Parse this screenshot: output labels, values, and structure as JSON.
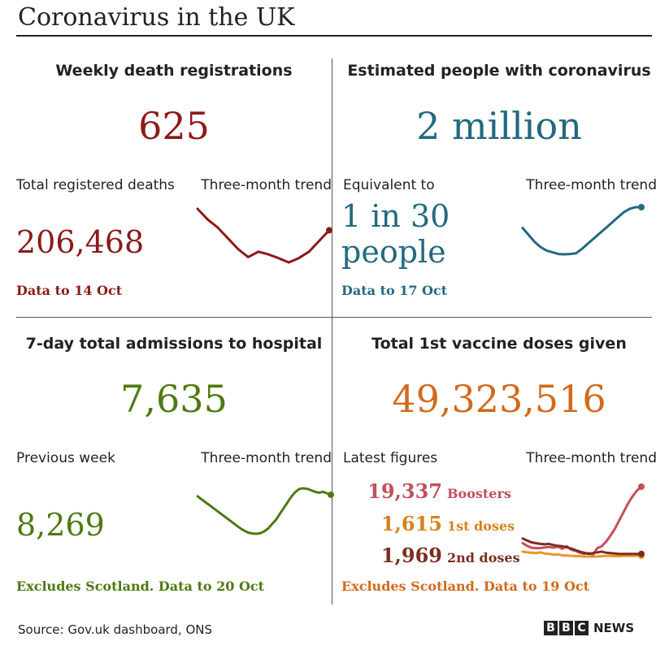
{
  "header": {
    "title": "Coronavirus in the UK"
  },
  "colors": {
    "deaths": "#8b1a1a",
    "infections": "#23697f",
    "hospital": "#4e7a12",
    "vaccine": "#d06a1c",
    "boosters": "#c2505a",
    "first_doses": "#d6821c",
    "second_doses": "#7a2e1e"
  },
  "panels": {
    "deaths": {
      "title": "Weekly death registrations",
      "value": "625",
      "sublabel": "Total registered deaths",
      "trend_label": "Three-month trend",
      "second_value": "206,468",
      "footnote": "Data to 14 Oct"
    },
    "infections": {
      "title": "Estimated people with coronavirus",
      "value": "2 million",
      "sublabel": "Equivalent to",
      "trend_label": "Three-month trend",
      "second_value_line1": "1 in 30",
      "second_value_line2": "people",
      "footnote": "Data to 17 Oct"
    },
    "hospital": {
      "title": "7-day total admissions to hospital",
      "value": "7,635",
      "sublabel": "Previous week",
      "trend_label": "Three-month trend",
      "second_value": "8,269",
      "footnote": "Excludes Scotland. Data to 20 Oct"
    },
    "vaccine": {
      "title": "Total 1st vaccine doses given",
      "value": "49,323,516",
      "sublabel": "Latest figures",
      "trend_label": "Three-month trend",
      "rows": [
        {
          "value": "19,337",
          "label": "Boosters"
        },
        {
          "value": "1,615",
          "label": "1st doses"
        },
        {
          "value": "1,969",
          "label": "2nd doses"
        }
      ],
      "footnote": "Excludes Scotland. Data to 19 Oct"
    }
  },
  "footer": {
    "source": "Source: Gov.uk dashboard, ONS",
    "logo_letters": [
      "B",
      "B",
      "C"
    ],
    "logo_word": "NEWS"
  },
  "chart_data": [
    {
      "type": "line",
      "series": [
        {
          "values": [
            10,
            8,
            6.5,
            4.5,
            2.5,
            1,
            2,
            1.5,
            0.8,
            0,
            0.8,
            2,
            4,
            6
          ]
        }
      ]
    },
    {
      "type": "line",
      "series": [
        {
          "values": [
            8,
            6,
            4,
            2.5,
            1.5,
            1,
            0.5,
            0.4,
            0.5,
            0.7,
            2,
            3.5,
            5,
            6.5,
            8,
            9.5,
            11,
            12.5,
            13.5,
            14,
            14
          ]
        }
      ]
    },
    {
      "type": "line",
      "series": [
        {
          "values": [
            13,
            12,
            11,
            10,
            9,
            8,
            7,
            6,
            5,
            4,
            3,
            2,
            1.2,
            0.6,
            0.3,
            0.2,
            0.4,
            1,
            2,
            3.5,
            5,
            7,
            9,
            11,
            13,
            14.5,
            15.5,
            15.7,
            15.5,
            15,
            14.5,
            14.2,
            14.5,
            14,
            13.5
          ]
        }
      ]
    },
    {
      "type": "line",
      "series": [
        {
          "name": "Boosters",
          "values": [
            3.8,
            3.1,
            2.6,
            2.5,
            2.5,
            2.7,
            2.8,
            2.6,
            2.9,
            2.3,
            3.0,
            2.1,
            1.8,
            1.3,
            1.0,
            1.2,
            0.8,
            2.5,
            3.0,
            4.2,
            5.8,
            7.6,
            9.8,
            12.0,
            14.2,
            16.0,
            17.5,
            18.5
          ]
        },
        {
          "name": "1st doses",
          "values": [
            1.6,
            1.4,
            1.3,
            1.2,
            1.4,
            1.1,
            1.0,
            0.8,
            0.9,
            0.6,
            0.6,
            0.5,
            0.4,
            0.4,
            0.3,
            0.3,
            0.3,
            0.3,
            0.4,
            0.5,
            0.5,
            0.4,
            0.4,
            0.5,
            0.5,
            0.5,
            0.5,
            0.5
          ]
        },
        {
          "name": "2nd doses",
          "values": [
            5.0,
            4.5,
            4.0,
            3.8,
            3.6,
            3.5,
            3.6,
            3.3,
            3.1,
            3.0,
            2.7,
            2.4,
            2.0,
            1.6,
            1.3,
            1.0,
            1.2,
            1.4,
            1.6,
            1.3,
            1.2,
            1.1,
            1.0,
            1.0,
            1.0,
            1.0,
            1.0,
            1.0
          ]
        }
      ]
    }
  ]
}
